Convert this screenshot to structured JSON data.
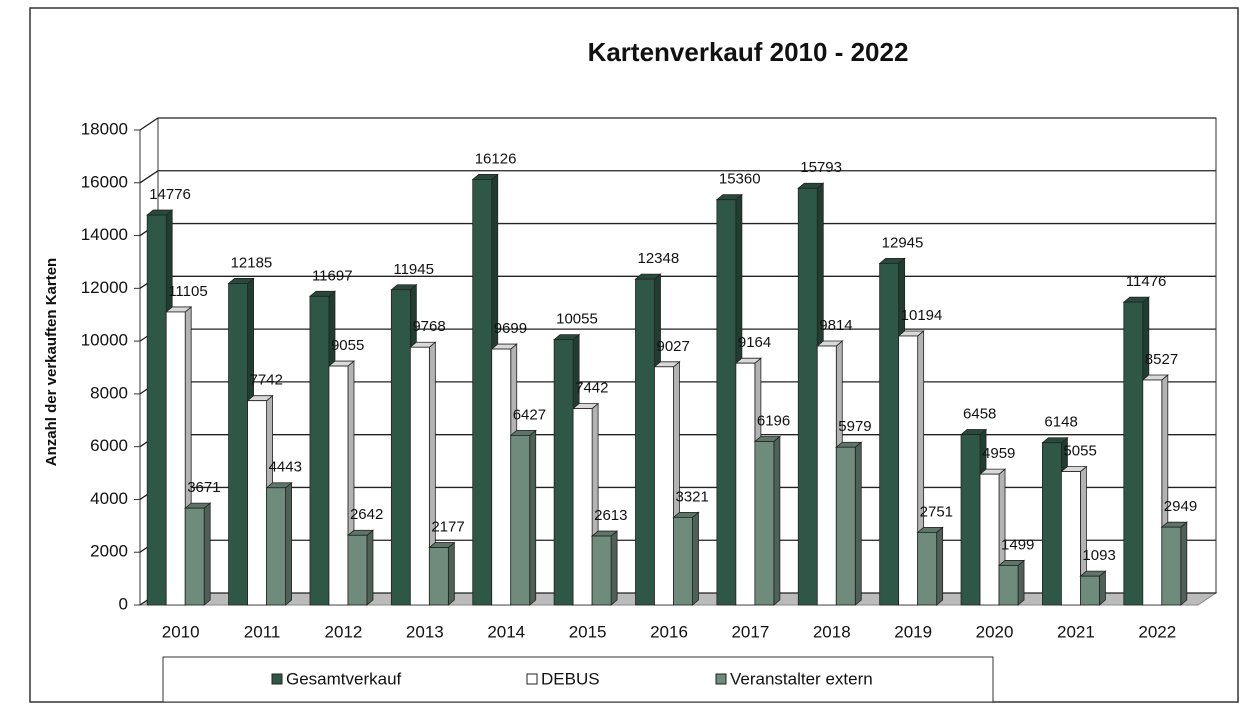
{
  "chart_data": {
    "type": "bar",
    "title": "Kartenverkauf 2010 - 2022",
    "ylabel": "Anzahl der verkauften Karten",
    "categories": [
      "2010",
      "2011",
      "2012",
      "2013",
      "2014",
      "2015",
      "2016",
      "2017",
      "2018",
      "2019",
      "2020",
      "2021",
      "2022"
    ],
    "series": [
      {
        "name": "Gesamtverkauf",
        "color": "#2f5747",
        "values": [
          14776,
          12185,
          11697,
          11945,
          16126,
          10055,
          12348,
          15360,
          15793,
          12945,
          6458,
          6148,
          11476
        ]
      },
      {
        "name": "DEBUS",
        "color": "#ffffff",
        "values": [
          11105,
          7742,
          9055,
          9768,
          9699,
          7442,
          9027,
          9164,
          9814,
          10194,
          4959,
          5055,
          8527
        ]
      },
      {
        "name": "Veranstalter extern",
        "color": "#6e8b7c",
        "values": [
          3671,
          4443,
          2642,
          2177,
          6427,
          2613,
          3321,
          6196,
          5979,
          2751,
          1499,
          1093,
          2949
        ]
      }
    ],
    "ylim": [
      0,
      18000
    ],
    "yticks": [
      0,
      2000,
      4000,
      6000,
      8000,
      10000,
      12000,
      14000,
      16000,
      18000
    ],
    "grid": true,
    "legend": "bottom"
  }
}
